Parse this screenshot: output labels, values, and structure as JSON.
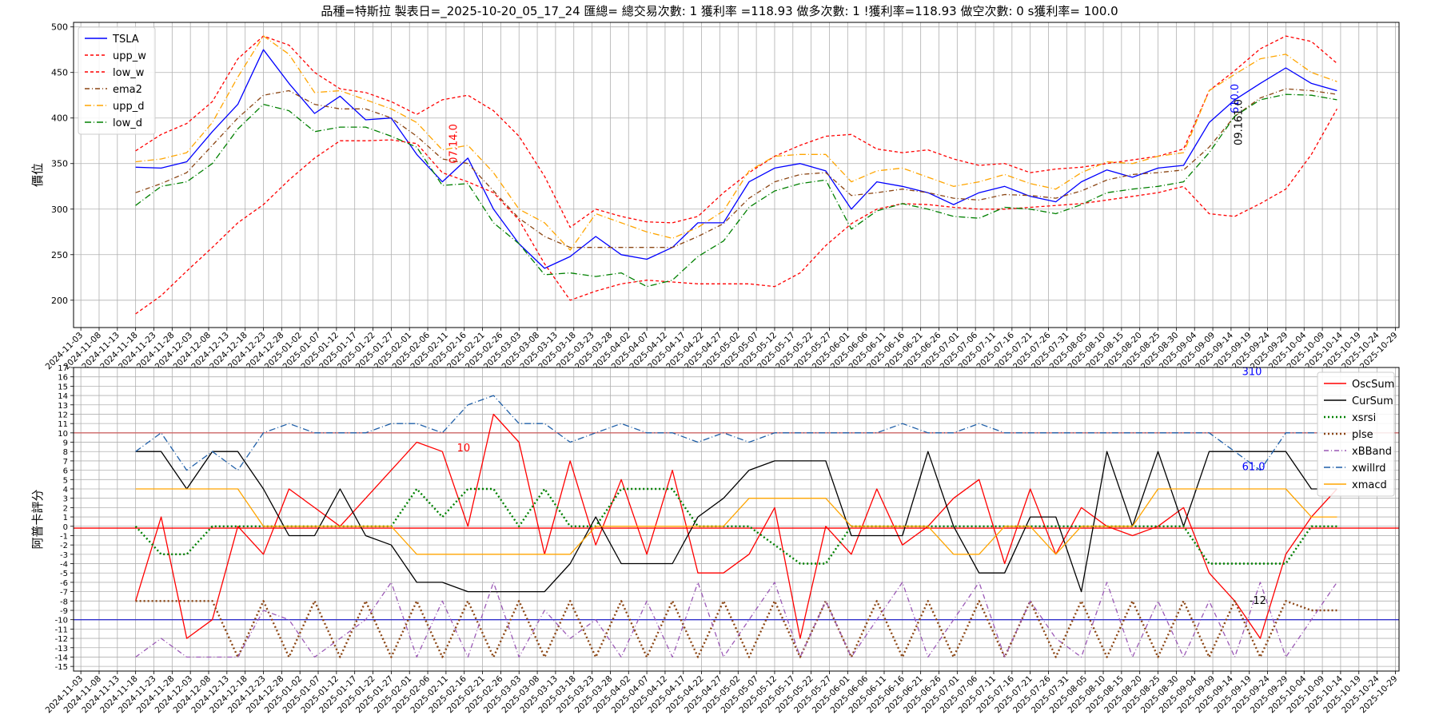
{
  "title": "品種=特斯拉 製表日=_2025-10-20_05_17_24 匯總= 總交易次數: 1 獲利率 =118.93 做多次數: 1 !獲利率=118.93 做空次數: 0 s獲利率= 100.0",
  "chart_data": [
    {
      "type": "line",
      "ylabel": "價位",
      "ylim": [
        170,
        505
      ],
      "yticks": [
        200,
        250,
        300,
        350,
        400,
        450,
        500
      ],
      "grid": true,
      "legend_position": "top-left",
      "x_dates": [
        "2024-11-18",
        "2024-11-25",
        "2024-12-02",
        "2024-12-09",
        "2024-12-16",
        "2024-12-23",
        "2024-12-30",
        "2025-01-06",
        "2025-01-13",
        "2025-01-20",
        "2025-01-27",
        "2025-02-03",
        "2025-02-10",
        "2025-02-17",
        "2025-02-24",
        "2025-03-03",
        "2025-03-10",
        "2025-03-17",
        "2025-03-24",
        "2025-03-31",
        "2025-04-07",
        "2025-04-14",
        "2025-04-21",
        "2025-04-28",
        "2025-05-05",
        "2025-05-12",
        "2025-05-19",
        "2025-05-26",
        "2025-06-02",
        "2025-06-09",
        "2025-06-16",
        "2025-06-23",
        "2025-06-30",
        "2025-07-07",
        "2025-07-14",
        "2025-07-21",
        "2025-07-28",
        "2025-08-04",
        "2025-08-11",
        "2025-08-18",
        "2025-08-25",
        "2025-09-01",
        "2025-09-08",
        "2025-09-15",
        "2025-09-22",
        "2025-09-29",
        "2025-10-06",
        "2025-10-13"
      ],
      "series": [
        {
          "name": "TSLA",
          "color": "#0000ff",
          "dash": "",
          "values": [
            346,
            345,
            352,
            385,
            415,
            475,
            438,
            405,
            424,
            398,
            400,
            360,
            330,
            356,
            300,
            262,
            235,
            248,
            270,
            250,
            245,
            258,
            285,
            285,
            330,
            345,
            350,
            342,
            300,
            330,
            325,
            318,
            305,
            318,
            325,
            314,
            308,
            330,
            343,
            335,
            345,
            348,
            395,
            420,
            438,
            455,
            438,
            430
          ]
        },
        {
          "name": "upp_w",
          "color": "#ff0000",
          "dash": "4,3",
          "values": [
            364,
            382,
            394,
            418,
            465,
            490,
            480,
            450,
            432,
            428,
            418,
            404,
            420,
            425,
            408,
            380,
            336,
            280,
            300,
            292,
            286,
            285,
            292,
            318,
            340,
            358,
            370,
            380,
            382,
            366,
            362,
            365,
            355,
            348,
            350,
            340,
            344,
            346,
            350,
            354,
            358,
            366,
            430,
            452,
            476,
            490,
            484,
            460
          ]
        },
        {
          "name": "low_w",
          "color": "#ff0000",
          "dash": "4,3",
          "values": [
            185,
            205,
            232,
            258,
            285,
            305,
            332,
            356,
            375,
            375,
            376,
            372,
            340,
            330,
            318,
            288,
            240,
            200,
            210,
            218,
            222,
            220,
            218,
            218,
            218,
            215,
            230,
            260,
            284,
            300,
            306,
            305,
            302,
            300,
            300,
            302,
            304,
            306,
            310,
            314,
            318,
            325,
            295,
            292,
            306,
            322,
            360,
            410
          ]
        },
        {
          "name": "ema2",
          "color": "#8b4513",
          "dash": "6,3,1,3",
          "values": [
            318,
            328,
            340,
            370,
            400,
            425,
            430,
            415,
            410,
            410,
            400,
            380,
            355,
            350,
            320,
            290,
            270,
            258,
            258,
            258,
            258,
            258,
            270,
            284,
            312,
            330,
            338,
            340,
            315,
            318,
            322,
            318,
            312,
            310,
            316,
            315,
            312,
            320,
            332,
            338,
            340,
            343,
            368,
            402,
            422,
            432,
            430,
            426
          ]
        },
        {
          "name": "upp_d",
          "color": "#ffa500",
          "dash": "8,3,1,3",
          "values": [
            352,
            355,
            362,
            395,
            445,
            490,
            470,
            428,
            430,
            420,
            410,
            395,
            365,
            370,
            340,
            300,
            285,
            255,
            295,
            285,
            275,
            268,
            280,
            298,
            342,
            358,
            360,
            360,
            330,
            342,
            345,
            335,
            325,
            330,
            338,
            328,
            322,
            340,
            352,
            350,
            358,
            362,
            430,
            448,
            465,
            470,
            450,
            440
          ]
        },
        {
          "name": "low_d",
          "color": "#008000",
          "dash": "8,3,1,3",
          "values": [
            304,
            325,
            330,
            350,
            388,
            415,
            408,
            385,
            390,
            390,
            380,
            368,
            326,
            328,
            285,
            262,
            228,
            230,
            226,
            230,
            215,
            222,
            248,
            265,
            302,
            320,
            328,
            332,
            278,
            298,
            306,
            300,
            292,
            290,
            302,
            300,
            295,
            305,
            318,
            322,
            325,
            330,
            362,
            402,
            420,
            426,
            425,
            420
          ]
        }
      ],
      "annotations": [
        {
          "text": "07.14.0",
          "color": "#ff0000",
          "x": "2025-02-14",
          "y": 350
        },
        {
          "text": "610.0",
          "color": "#0000ff",
          "x": "2025-09-16",
          "y": 405
        },
        {
          "text": "09.161.0",
          "color": "#000000",
          "x": "2025-09-17",
          "y": 370
        }
      ]
    },
    {
      "type": "line",
      "ylabel": "阿普卡評分",
      "ylim": [
        -15.5,
        17
      ],
      "yticks": [
        -15,
        -14,
        -13,
        -12,
        -11,
        -10,
        -9,
        -8,
        -7,
        -6,
        -5,
        -4,
        -3,
        -2,
        -1,
        0,
        1,
        2,
        3,
        4,
        5,
        6,
        7,
        8,
        9,
        10,
        11,
        12,
        13,
        14,
        15,
        16,
        17
      ],
      "hlines": [
        {
          "y": 10,
          "color": "#cc6666"
        },
        {
          "y": -0.2,
          "color": "#ff0000"
        },
        {
          "y": -10,
          "color": "#3333cc"
        }
      ],
      "grid": true,
      "legend_position": "top-right",
      "x_dates": [
        "2024-11-18",
        "2024-11-25",
        "2024-12-02",
        "2024-12-09",
        "2024-12-16",
        "2024-12-23",
        "2024-12-30",
        "2025-01-06",
        "2025-01-13",
        "2025-01-20",
        "2025-01-27",
        "2025-02-03",
        "2025-02-10",
        "2025-02-17",
        "2025-02-24",
        "2025-03-03",
        "2025-03-10",
        "2025-03-17",
        "2025-03-24",
        "2025-03-31",
        "2025-04-07",
        "2025-04-14",
        "2025-04-21",
        "2025-04-28",
        "2025-05-05",
        "2025-05-12",
        "2025-05-19",
        "2025-05-26",
        "2025-06-02",
        "2025-06-09",
        "2025-06-16",
        "2025-06-23",
        "2025-06-30",
        "2025-07-07",
        "2025-07-14",
        "2025-07-21",
        "2025-07-28",
        "2025-08-04",
        "2025-08-11",
        "2025-08-18",
        "2025-08-25",
        "2025-09-01",
        "2025-09-08",
        "2025-09-15",
        "2025-09-22",
        "2025-09-29",
        "2025-10-06",
        "2025-10-13"
      ],
      "series": [
        {
          "name": "OscSum",
          "color": "#ff0000",
          "dash": "",
          "values": [
            -8,
            1,
            -12,
            -10,
            0,
            -3,
            4,
            2,
            0,
            3,
            6,
            9,
            8,
            0,
            12,
            9,
            -3,
            7,
            -2,
            5,
            -3,
            6,
            -5,
            -5,
            -3,
            2,
            -12,
            0,
            -3,
            4,
            -2,
            0,
            3,
            5,
            -4,
            4,
            -3,
            2,
            0,
            -1,
            0,
            2,
            -5,
            -8,
            -12,
            -3,
            1,
            4
          ]
        },
        {
          "name": "CurSum",
          "color": "#000000",
          "dash": "",
          "values": [
            8,
            8,
            4,
            8,
            8,
            4,
            -1,
            -1,
            4,
            -1,
            -2,
            -6,
            -6,
            -7,
            -7,
            -7,
            -7,
            -4,
            1,
            -4,
            -4,
            -4,
            1,
            3,
            6,
            7,
            7,
            7,
            -1,
            -1,
            -1,
            8,
            0,
            -5,
            -5,
            1,
            1,
            -7,
            8,
            0,
            8,
            0,
            8,
            8,
            8,
            8,
            4,
            4
          ]
        },
        {
          "name": "xsrsi",
          "color": "#008000",
          "dash": "2,3",
          "values": [
            0,
            -3,
            -3,
            0,
            0,
            0,
            0,
            0,
            0,
            0,
            0,
            4,
            1,
            4,
            4,
            0,
            4,
            0,
            0,
            4,
            4,
            4,
            0,
            0,
            0,
            -2,
            -4,
            -4,
            0,
            0,
            0,
            0,
            0,
            0,
            0,
            0,
            0,
            0,
            0,
            0,
            0,
            0,
            -4,
            -4,
            -4,
            -4,
            0,
            0
          ]
        },
        {
          "name": "plse",
          "color": "#8b4513",
          "dash": "2,3",
          "values": [
            -8,
            -8,
            -8,
            -8,
            -14,
            -8,
            -14,
            -8,
            -14,
            -8,
            -14,
            -8,
            -14,
            -8,
            -14,
            -8,
            -14,
            -8,
            -14,
            -8,
            -14,
            -8,
            -14,
            -8,
            -14,
            -8,
            -14,
            -8,
            -14,
            -8,
            -14,
            -8,
            -14,
            -8,
            -14,
            -8,
            -14,
            -8,
            -14,
            -8,
            -14,
            -8,
            -14,
            -8,
            -14,
            -8,
            -9,
            -9
          ]
        },
        {
          "name": "xBBand",
          "color": "#9b59b6",
          "dash": "6,3,1,3",
          "values": [
            -14,
            -12,
            -14,
            -14,
            -14,
            -9,
            -10,
            -14,
            -12,
            -10,
            -6,
            -14,
            -8,
            -14,
            -6,
            -14,
            -9,
            -12,
            -10,
            -14,
            -8,
            -14,
            -6,
            -14,
            -10,
            -6,
            -14,
            -8,
            -14,
            -10,
            -6,
            -14,
            -10,
            -6,
            -14,
            -8,
            -12,
            -14,
            -6,
            -14,
            -8,
            -14,
            -8,
            -14,
            -6,
            -14,
            -10,
            -6
          ]
        },
        {
          "name": "xwillrd",
          "color": "#1f5fa8",
          "dash": "8,3,1,3",
          "values": [
            8,
            10,
            6,
            8,
            6,
            10,
            11,
            10,
            10,
            10,
            11,
            11,
            10,
            13,
            14,
            11,
            11,
            9,
            10,
            11,
            10,
            10,
            9,
            10,
            9,
            10,
            10,
            10,
            10,
            10,
            11,
            10,
            10,
            11,
            10,
            10,
            10,
            10,
            10,
            10,
            10,
            10,
            10,
            8,
            6,
            10,
            10,
            10
          ]
        },
        {
          "name": "xmacd",
          "color": "#ffa500",
          "dash": "",
          "values": [
            4,
            4,
            4,
            4,
            4,
            0,
            0,
            0,
            0,
            0,
            0,
            -3,
            -3,
            -3,
            -3,
            -3,
            -3,
            -3,
            0,
            0,
            0,
            0,
            0,
            0,
            3,
            3,
            3,
            3,
            0,
            0,
            0,
            0,
            -3,
            -3,
            0,
            0,
            -3,
            0,
            0,
            0,
            4,
            4,
            4,
            4,
            4,
            4,
            1,
            1
          ]
        }
      ],
      "annotations": [
        {
          "text": "10",
          "color": "#ff0000",
          "x": "2025-02-14",
          "y": 8
        },
        {
          "text": "310",
          "color": "#0000ff",
          "x": "2025-09-17",
          "y": 16.2
        },
        {
          "text": "61.0",
          "color": "#0000ff",
          "x": "2025-09-17",
          "y": 6
        },
        {
          "text": "-12",
          "color": "#000000",
          "x": "2025-09-19",
          "y": -8.3
        }
      ]
    }
  ],
  "x_tick_labels": [
    "2024-11-03",
    "2024-11-08",
    "2024-11-13",
    "2024-11-18",
    "2024-11-23",
    "2024-11-28",
    "2024-12-03",
    "2024-12-08",
    "2024-12-13",
    "2024-12-18",
    "2024-12-23",
    "2024-12-28",
    "2025-01-02",
    "2025-01-07",
    "2025-01-12",
    "2025-01-17",
    "2025-01-22",
    "2025-01-27",
    "2025-02-01",
    "2025-02-06",
    "2025-02-11",
    "2025-02-16",
    "2025-02-21",
    "2025-02-26",
    "2025-03-03",
    "2025-03-08",
    "2025-03-13",
    "2025-03-18",
    "2025-03-23",
    "2025-03-28",
    "2025-04-02",
    "2025-04-07",
    "2025-04-12",
    "2025-04-17",
    "2025-04-22",
    "2025-04-27",
    "2025-05-02",
    "2025-05-07",
    "2025-05-12",
    "2025-05-17",
    "2025-05-22",
    "2025-05-27",
    "2025-06-01",
    "2025-06-06",
    "2025-06-11",
    "2025-06-16",
    "2025-06-21",
    "2025-06-26",
    "2025-07-01",
    "2025-07-06",
    "2025-07-11",
    "2025-07-16",
    "2025-07-21",
    "2025-07-26",
    "2025-07-31",
    "2025-08-05",
    "2025-08-10",
    "2025-08-15",
    "2025-08-20",
    "2025-08-25",
    "2025-08-30",
    "2025-09-04",
    "2025-09-09",
    "2025-09-14",
    "2025-09-19",
    "2025-09-24",
    "2025-09-29",
    "2025-10-04",
    "2025-10-09",
    "2025-10-14",
    "2025-10-19",
    "2025-10-24",
    "2025-10-29"
  ]
}
